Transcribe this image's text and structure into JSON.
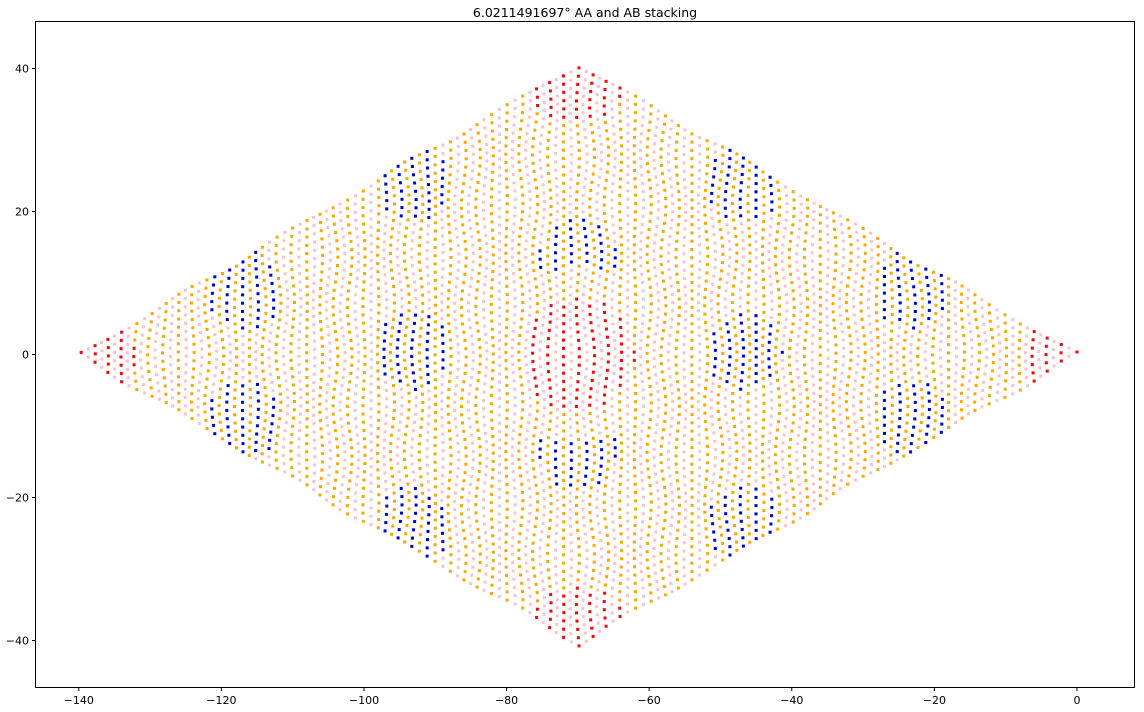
{
  "chart_data": {
    "type": "scatter",
    "title": "6.0211491697° AA and AB stacking",
    "xlabel": "",
    "ylabel": "",
    "xlim": [
      -146,
      8
    ],
    "ylim": [
      -46.5,
      46.5
    ],
    "xticks": [
      -140,
      -120,
      -100,
      -80,
      -60,
      -40,
      -20,
      0
    ],
    "yticks": [
      -40,
      -20,
      0,
      20,
      40
    ],
    "grid": false,
    "legend": "none",
    "lattice": {
      "a1": [
        -0.5,
        0.2887
      ],
      "a2": [
        -0.5,
        -0.2887
      ],
      "n": 140,
      "step": 1
    },
    "moire": {
      "angle_deg": 6.0211491697,
      "centers": [
        [
          -70,
          0
        ],
        [
          -70,
          40.41
        ],
        [
          -70,
          -40.41
        ],
        [
          0,
          0
        ],
        [
          -140,
          0
        ]
      ]
    },
    "series": [
      {
        "name": "",
        "color": "#ff0000",
        "marker": "square",
        "role": "AA near region"
      },
      {
        "name": "",
        "color": "#0000cd",
        "marker": "square",
        "role": "AB near region"
      },
      {
        "name": "",
        "color": "#ffa500",
        "marker": "square",
        "role": "AA sublattice"
      },
      {
        "name": "",
        "color": "#ffc0cb",
        "marker": "square",
        "role": "AB sublattice"
      }
    ]
  }
}
